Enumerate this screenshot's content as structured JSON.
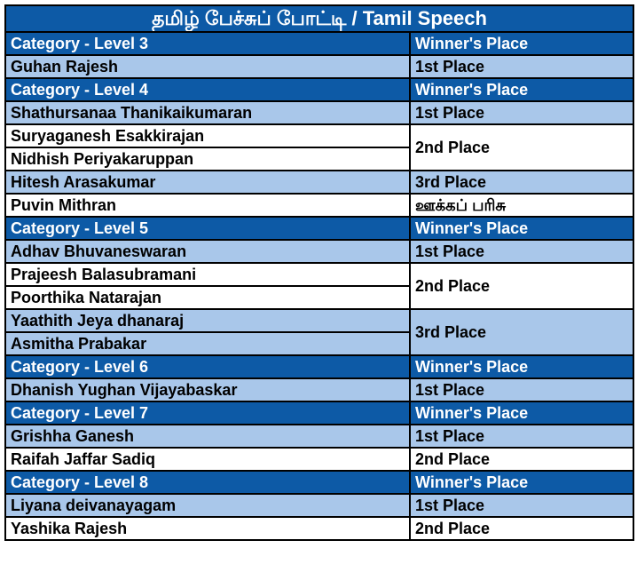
{
  "title": "தமிழ் பேச்சுப் போட்டி / Tamil Speech",
  "rows": [
    {
      "type": "header",
      "left": "Category - Level 3",
      "right": "Winner's Place"
    },
    {
      "type": "light",
      "left": "Guhan Rajesh",
      "right": "1st Place"
    },
    {
      "type": "header",
      "left": "Category - Level 4",
      "right": "Winner's Place"
    },
    {
      "type": "light",
      "left": "Shathursanaa Thanikaikumaran",
      "right": "1st Place"
    },
    {
      "type": "white",
      "left": "Suryaganesh Esakkirajan",
      "right": "2nd Place",
      "rowspan": 2
    },
    {
      "type": "white",
      "left": "Nidhish Periyakaruppan"
    },
    {
      "type": "light",
      "left": "Hitesh Arasakumar",
      "right": "3rd Place"
    },
    {
      "type": "white",
      "left": "Puvin Mithran",
      "right": "ஊக்கப் பரிசு"
    },
    {
      "type": "header",
      "left": "Category - Level 5",
      "right": "Winner's Place"
    },
    {
      "type": "light",
      "left": "Adhav Bhuvaneswaran",
      "right": "1st Place"
    },
    {
      "type": "white",
      "left": "Prajeesh Balasubramani",
      "right": "2nd Place",
      "rowspan": 2
    },
    {
      "type": "white",
      "left": "Poorthika Natarajan"
    },
    {
      "type": "light",
      "left": "Yaathith Jeya dhanaraj",
      "right": "3rd Place",
      "rowspan": 2
    },
    {
      "type": "light",
      "left": "Asmitha Prabakar"
    },
    {
      "type": "header",
      "left": "Category -  Level 6",
      "right": "Winner's Place"
    },
    {
      "type": "light",
      "left": "Dhanish Yughan Vijayabaskar",
      "right": "1st Place"
    },
    {
      "type": "header",
      "left": "Category - Level 7",
      "right": "Winner's Place"
    },
    {
      "type": "light",
      "left": "Grishha Ganesh",
      "right": "1st Place"
    },
    {
      "type": "white",
      "left": "Raifah Jaffar Sadiq",
      "right": "2nd Place"
    },
    {
      "type": "header",
      "left": "Category - Level 8",
      "right": "Winner's Place"
    },
    {
      "type": "light",
      "left": "Liyana deivanayagam",
      "right": "1st Place"
    },
    {
      "type": "white",
      "left": "Yashika Rajesh",
      "right": "2nd Place"
    }
  ],
  "colors": {
    "header": "#0d5aa6",
    "light": "#a9c7ea",
    "white": "#ffffff"
  }
}
